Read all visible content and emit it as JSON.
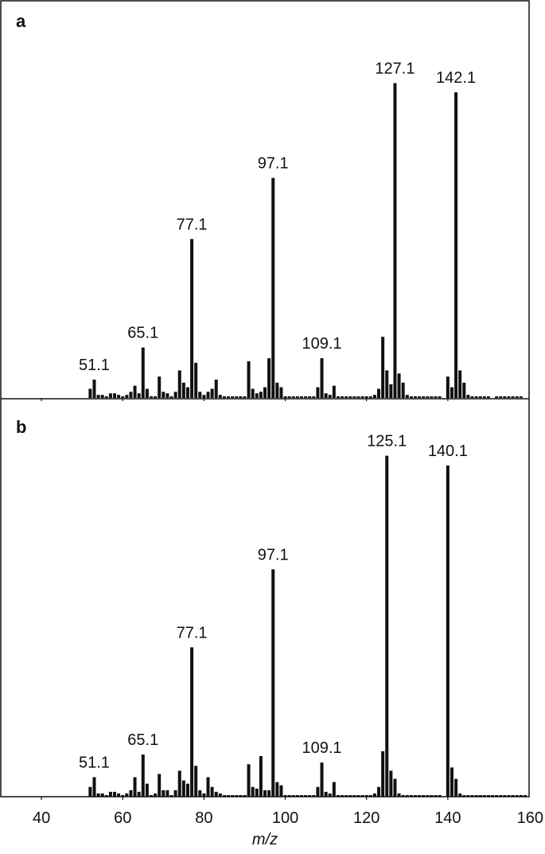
{
  "colors": {
    "bar": "#111111",
    "frame": "#111111",
    "background": "#ffffff"
  },
  "chart_data": {
    "type": "bar",
    "xlabel": "m/z",
    "ylabel": "",
    "xlim": [
      30,
      160
    ],
    "xticks": [
      40,
      60,
      80,
      100,
      120,
      140,
      160
    ],
    "ylim": [
      0,
      100
    ],
    "grid": false,
    "panels": [
      {
        "label": "a",
        "peaks": [
          {
            "x": 52,
            "y": 3
          },
          {
            "x": 53,
            "y": 6
          },
          {
            "x": 54,
            "y": 1
          },
          {
            "x": 55,
            "y": 1
          },
          {
            "x": 56,
            "y": 0.5
          },
          {
            "x": 57,
            "y": 1.5
          },
          {
            "x": 58,
            "y": 1.5
          },
          {
            "x": 59,
            "y": 1
          },
          {
            "x": 60,
            "y": 0.5
          },
          {
            "x": 61,
            "y": 1
          },
          {
            "x": 62,
            "y": 2
          },
          {
            "x": 63,
            "y": 4
          },
          {
            "x": 64,
            "y": 1.5
          },
          {
            "x": 65,
            "y": 16.5
          },
          {
            "x": 66,
            "y": 3
          },
          {
            "x": 67,
            "y": 0.5
          },
          {
            "x": 68,
            "y": 0.5
          },
          {
            "x": 69,
            "y": 7
          },
          {
            "x": 70,
            "y": 2
          },
          {
            "x": 71,
            "y": 1.5
          },
          {
            "x": 72,
            "y": 0.5
          },
          {
            "x": 73,
            "y": 2
          },
          {
            "x": 74,
            "y": 9
          },
          {
            "x": 75,
            "y": 5
          },
          {
            "x": 76,
            "y": 3.5
          },
          {
            "x": 77,
            "y": 52
          },
          {
            "x": 78,
            "y": 11.5
          },
          {
            "x": 79,
            "y": 2
          },
          {
            "x": 80,
            "y": 1
          },
          {
            "x": 81,
            "y": 2
          },
          {
            "x": 82,
            "y": 3
          },
          {
            "x": 83,
            "y": 6
          },
          {
            "x": 84,
            "y": 1
          },
          {
            "x": 85,
            "y": 0.5
          },
          {
            "x": 86,
            "y": 0.5
          },
          {
            "x": 87,
            "y": 0.5
          },
          {
            "x": 88,
            "y": 0.5
          },
          {
            "x": 89,
            "y": 0.5
          },
          {
            "x": 90,
            "y": 0.5
          },
          {
            "x": 91,
            "y": 12
          },
          {
            "x": 92,
            "y": 3
          },
          {
            "x": 93,
            "y": 1.5
          },
          {
            "x": 94,
            "y": 2
          },
          {
            "x": 95,
            "y": 3.5
          },
          {
            "x": 96,
            "y": 13
          },
          {
            "x": 97,
            "y": 72
          },
          {
            "x": 98,
            "y": 5
          },
          {
            "x": 99,
            "y": 3.5
          },
          {
            "x": 100,
            "y": 0.5
          },
          {
            "x": 101,
            "y": 0.5
          },
          {
            "x": 102,
            "y": 0.5
          },
          {
            "x": 103,
            "y": 0.5
          },
          {
            "x": 104,
            "y": 0.5
          },
          {
            "x": 105,
            "y": 0.5
          },
          {
            "x": 106,
            "y": 0.5
          },
          {
            "x": 107,
            "y": 0.5
          },
          {
            "x": 108,
            "y": 3.5
          },
          {
            "x": 109,
            "y": 13
          },
          {
            "x": 110,
            "y": 1.5
          },
          {
            "x": 111,
            "y": 1
          },
          {
            "x": 112,
            "y": 4
          },
          {
            "x": 113,
            "y": 0.5
          },
          {
            "x": 114,
            "y": 0.5
          },
          {
            "x": 115,
            "y": 0.5
          },
          {
            "x": 116,
            "y": 0.5
          },
          {
            "x": 117,
            "y": 0.5
          },
          {
            "x": 118,
            "y": 0.5
          },
          {
            "x": 119,
            "y": 0.5
          },
          {
            "x": 120,
            "y": 0.5
          },
          {
            "x": 121,
            "y": 0.5
          },
          {
            "x": 122,
            "y": 1
          },
          {
            "x": 123,
            "y": 3
          },
          {
            "x": 124,
            "y": 20
          },
          {
            "x": 125,
            "y": 9
          },
          {
            "x": 126,
            "y": 4.5
          },
          {
            "x": 127,
            "y": 103
          },
          {
            "x": 128,
            "y": 8
          },
          {
            "x": 129,
            "y": 5
          },
          {
            "x": 130,
            "y": 1
          },
          {
            "x": 131,
            "y": 0.5
          },
          {
            "x": 132,
            "y": 0.5
          },
          {
            "x": 133,
            "y": 0.5
          },
          {
            "x": 134,
            "y": 0.5
          },
          {
            "x": 135,
            "y": 0.5
          },
          {
            "x": 136,
            "y": 0.5
          },
          {
            "x": 137,
            "y": 0.5
          },
          {
            "x": 138,
            "y": 0.5
          },
          {
            "x": 140,
            "y": 7
          },
          {
            "x": 141,
            "y": 3.5
          },
          {
            "x": 142,
            "y": 100
          },
          {
            "x": 143,
            "y": 9
          },
          {
            "x": 144,
            "y": 5
          },
          {
            "x": 145,
            "y": 1
          },
          {
            "x": 146,
            "y": 0.5
          },
          {
            "x": 147,
            "y": 0.5
          },
          {
            "x": 148,
            "y": 0.5
          },
          {
            "x": 149,
            "y": 0.5
          },
          {
            "x": 150,
            "y": 0.5
          },
          {
            "x": 152,
            "y": 0.5
          },
          {
            "x": 153,
            "y": 0.5
          },
          {
            "x": 154,
            "y": 0.5
          },
          {
            "x": 155,
            "y": 0.5
          },
          {
            "x": 156,
            "y": 0.5
          },
          {
            "x": 157,
            "y": 0.5
          },
          {
            "x": 158,
            "y": 0.5
          }
        ],
        "labels": [
          {
            "text": "51.1",
            "x": 53
          },
          {
            "text": "65.1",
            "x": 65
          },
          {
            "text": "77.1",
            "x": 77
          },
          {
            "text": "97.1",
            "x": 97
          },
          {
            "text": "109.1",
            "x": 109
          },
          {
            "text": "127.1",
            "x": 127
          },
          {
            "text": "142.1",
            "x": 142
          }
        ]
      },
      {
        "label": "b",
        "peaks": [
          {
            "x": 52,
            "y": 3
          },
          {
            "x": 53,
            "y": 6
          },
          {
            "x": 54,
            "y": 1
          },
          {
            "x": 55,
            "y": 1
          },
          {
            "x": 56,
            "y": 0.5
          },
          {
            "x": 57,
            "y": 1.5
          },
          {
            "x": 58,
            "y": 1.5
          },
          {
            "x": 59,
            "y": 1
          },
          {
            "x": 60,
            "y": 0.5
          },
          {
            "x": 61,
            "y": 1
          },
          {
            "x": 62,
            "y": 2
          },
          {
            "x": 63,
            "y": 6
          },
          {
            "x": 64,
            "y": 1.5
          },
          {
            "x": 65,
            "y": 13
          },
          {
            "x": 66,
            "y": 4
          },
          {
            "x": 67,
            "y": 0.5
          },
          {
            "x": 68,
            "y": 1
          },
          {
            "x": 69,
            "y": 7
          },
          {
            "x": 70,
            "y": 2
          },
          {
            "x": 71,
            "y": 2
          },
          {
            "x": 72,
            "y": 0.5
          },
          {
            "x": 73,
            "y": 2
          },
          {
            "x": 74,
            "y": 8
          },
          {
            "x": 75,
            "y": 5
          },
          {
            "x": 76,
            "y": 4
          },
          {
            "x": 77,
            "y": 46
          },
          {
            "x": 78,
            "y": 9.5
          },
          {
            "x": 79,
            "y": 2
          },
          {
            "x": 80,
            "y": 1
          },
          {
            "x": 81,
            "y": 6
          },
          {
            "x": 82,
            "y": 3
          },
          {
            "x": 83,
            "y": 1.5
          },
          {
            "x": 84,
            "y": 1
          },
          {
            "x": 85,
            "y": 0.5
          },
          {
            "x": 86,
            "y": 0.5
          },
          {
            "x": 87,
            "y": 0.5
          },
          {
            "x": 88,
            "y": 0.5
          },
          {
            "x": 89,
            "y": 0.5
          },
          {
            "x": 90,
            "y": 0.5
          },
          {
            "x": 91,
            "y": 10
          },
          {
            "x": 92,
            "y": 3
          },
          {
            "x": 93,
            "y": 2.5
          },
          {
            "x": 94,
            "y": 12.5
          },
          {
            "x": 95,
            "y": 2
          },
          {
            "x": 96,
            "y": 2
          },
          {
            "x": 97,
            "y": 70
          },
          {
            "x": 98,
            "y": 4.5
          },
          {
            "x": 99,
            "y": 3.5
          },
          {
            "x": 100,
            "y": 0.5
          },
          {
            "x": 101,
            "y": 0.5
          },
          {
            "x": 102,
            "y": 0.5
          },
          {
            "x": 103,
            "y": 0.5
          },
          {
            "x": 104,
            "y": 0.5
          },
          {
            "x": 105,
            "y": 0.5
          },
          {
            "x": 106,
            "y": 0.5
          },
          {
            "x": 107,
            "y": 0.5
          },
          {
            "x": 108,
            "y": 3
          },
          {
            "x": 109,
            "y": 10.5
          },
          {
            "x": 110,
            "y": 1.5
          },
          {
            "x": 111,
            "y": 1
          },
          {
            "x": 112,
            "y": 4.5
          },
          {
            "x": 113,
            "y": 0.5
          },
          {
            "x": 114,
            "y": 0.5
          },
          {
            "x": 115,
            "y": 0.5
          },
          {
            "x": 116,
            "y": 0.5
          },
          {
            "x": 117,
            "y": 0.5
          },
          {
            "x": 118,
            "y": 0.5
          },
          {
            "x": 119,
            "y": 0.5
          },
          {
            "x": 120,
            "y": 0.5
          },
          {
            "x": 121,
            "y": 0.5
          },
          {
            "x": 122,
            "y": 1
          },
          {
            "x": 123,
            "y": 3
          },
          {
            "x": 124,
            "y": 14
          },
          {
            "x": 125,
            "y": 105
          },
          {
            "x": 126,
            "y": 8
          },
          {
            "x": 127,
            "y": 5.5
          },
          {
            "x": 128,
            "y": 1
          },
          {
            "x": 129,
            "y": 0.5
          },
          {
            "x": 130,
            "y": 0.5
          },
          {
            "x": 131,
            "y": 0.5
          },
          {
            "x": 132,
            "y": 0.5
          },
          {
            "x": 133,
            "y": 0.5
          },
          {
            "x": 134,
            "y": 0.5
          },
          {
            "x": 135,
            "y": 0.5
          },
          {
            "x": 136,
            "y": 0.5
          },
          {
            "x": 137,
            "y": 0.5
          },
          {
            "x": 138,
            "y": 0.5
          },
          {
            "x": 140,
            "y": 102
          },
          {
            "x": 141,
            "y": 9
          },
          {
            "x": 142,
            "y": 5.5
          },
          {
            "x": 143,
            "y": 1
          },
          {
            "x": 144,
            "y": 0.5
          },
          {
            "x": 145,
            "y": 0.5
          },
          {
            "x": 146,
            "y": 0.5
          },
          {
            "x": 147,
            "y": 0.5
          },
          {
            "x": 148,
            "y": 0.5
          },
          {
            "x": 149,
            "y": 0.5
          },
          {
            "x": 150,
            "y": 0.5
          },
          {
            "x": 151,
            "y": 0.5
          },
          {
            "x": 152,
            "y": 0.5
          },
          {
            "x": 153,
            "y": 0.5
          },
          {
            "x": 154,
            "y": 0.5
          },
          {
            "x": 155,
            "y": 0.5
          },
          {
            "x": 156,
            "y": 0.5
          },
          {
            "x": 157,
            "y": 0.5
          },
          {
            "x": 158,
            "y": 0.5
          },
          {
            "x": 159,
            "y": 0.5
          }
        ],
        "labels": [
          {
            "text": "51.1",
            "x": 53
          },
          {
            "text": "65.1",
            "x": 65
          },
          {
            "text": "77.1",
            "x": 77
          },
          {
            "text": "97.1",
            "x": 97
          },
          {
            "text": "109.1",
            "x": 109
          },
          {
            "text": "125.1",
            "x": 125
          },
          {
            "text": "140.1",
            "x": 140
          }
        ]
      }
    ]
  }
}
